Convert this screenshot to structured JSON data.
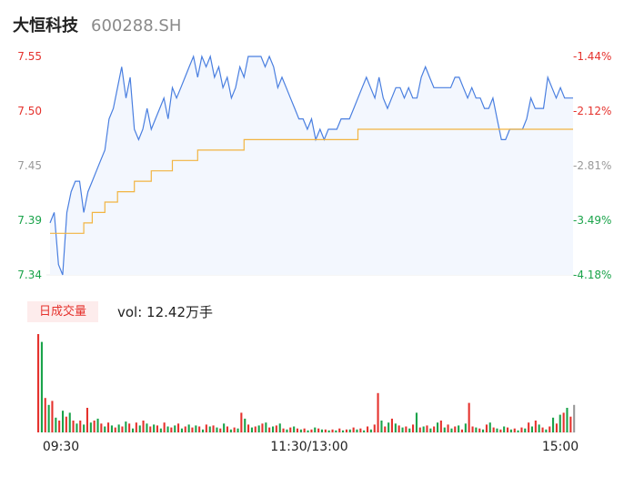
{
  "header": {
    "name": "大恒科技",
    "code": "600288.SH"
  },
  "volume_panel": {
    "tab_label": "日成交量",
    "vol_prefix": "vol: ",
    "vol_value": "12.42万手"
  },
  "colors": {
    "price_line": "#4a7fe0",
    "avg_line": "#f2b441",
    "up": "#e5322d",
    "down": "#1aa34a",
    "neutral": "#999999",
    "area": "#f3f7fe"
  },
  "chart_data": [
    {
      "type": "line",
      "title": "",
      "y_ticks_left": [
        "7.55",
        "7.50",
        "7.45",
        "7.39",
        "7.34"
      ],
      "y_ticks_right": [
        "-1.44%",
        "-2.12%",
        "-2.81%",
        "-3.49%",
        "-4.18%"
      ],
      "tick_colors": [
        "up",
        "up",
        "neutral",
        "down",
        "down"
      ],
      "ylim": [
        7.34,
        7.55
      ],
      "x_ticks": [
        "09:30",
        "11:30/13:00",
        "15:00"
      ],
      "series": [
        {
          "values": [
            7.39,
            7.4,
            7.35,
            7.34,
            7.4,
            7.42,
            7.43,
            7.43,
            7.4,
            7.42,
            7.43,
            7.44,
            7.45,
            7.46,
            7.49,
            7.5,
            7.52,
            7.54,
            7.51,
            7.53,
            7.48,
            7.47,
            7.48,
            7.5,
            7.48,
            7.49,
            7.5,
            7.51,
            7.49,
            7.52,
            7.51,
            7.52,
            7.53,
            7.54,
            7.55,
            7.53,
            7.55,
            7.54,
            7.55,
            7.53,
            7.54,
            7.52,
            7.53,
            7.51,
            7.52,
            7.54,
            7.53,
            7.55,
            7.55,
            7.55,
            7.55,
            7.54,
            7.55,
            7.54,
            7.52,
            7.53,
            7.52,
            7.51,
            7.5,
            7.49,
            7.49,
            7.48,
            7.49,
            7.47,
            7.48,
            7.47,
            7.48,
            7.48,
            7.48,
            7.49,
            7.49,
            7.49,
            7.5,
            7.51,
            7.52,
            7.53,
            7.52,
            7.51,
            7.53,
            7.51,
            7.5,
            7.51,
            7.52,
            7.52,
            7.51,
            7.52,
            7.51,
            7.51,
            7.53,
            7.54,
            7.53,
            7.52,
            7.52,
            7.52,
            7.52,
            7.52,
            7.53,
            7.53,
            7.52,
            7.51,
            7.52,
            7.51,
            7.51,
            7.5,
            7.5,
            7.51,
            7.49,
            7.47,
            7.47,
            7.48,
            7.48,
            7.48,
            7.48,
            7.49,
            7.51,
            7.5,
            7.5,
            7.5,
            7.53,
            7.52,
            7.51,
            7.52,
            7.51,
            7.51,
            7.51
          ],
          "label_values": [
            "7.55",
            "7.50",
            "7.45",
            "7.39",
            "7.34"
          ]
        },
        {
          "values": [
            7.38,
            7.38,
            7.38,
            7.38,
            7.38,
            7.38,
            7.38,
            7.38,
            7.39,
            7.39,
            7.4,
            7.4,
            7.4,
            7.41,
            7.41,
            7.41,
            7.42,
            7.42,
            7.42,
            7.42,
            7.43,
            7.43,
            7.43,
            7.43,
            7.44,
            7.44,
            7.44,
            7.44,
            7.44,
            7.45,
            7.45,
            7.45,
            7.45,
            7.45,
            7.45,
            7.46,
            7.46,
            7.46,
            7.46,
            7.46,
            7.46,
            7.46,
            7.46,
            7.46,
            7.46,
            7.46,
            7.47,
            7.47,
            7.47,
            7.47,
            7.47,
            7.47,
            7.47,
            7.47,
            7.47,
            7.47,
            7.47,
            7.47,
            7.47,
            7.47,
            7.47,
            7.47,
            7.47,
            7.47,
            7.47,
            7.47,
            7.47,
            7.47,
            7.47,
            7.47,
            7.47,
            7.47,
            7.47,
            7.48,
            7.48,
            7.48,
            7.48,
            7.48,
            7.48,
            7.48,
            7.48,
            7.48,
            7.48,
            7.48,
            7.48,
            7.48,
            7.48,
            7.48,
            7.48,
            7.48,
            7.48,
            7.48,
            7.48,
            7.48,
            7.48,
            7.48,
            7.48,
            7.48,
            7.48,
            7.48,
            7.48,
            7.48,
            7.48,
            7.48,
            7.48,
            7.48,
            7.48,
            7.48,
            7.48,
            7.48,
            7.48,
            7.48,
            7.48,
            7.48,
            7.48,
            7.48,
            7.48,
            7.48,
            7.48,
            7.48,
            7.48,
            7.48,
            7.48,
            7.48,
            7.48
          ]
        }
      ]
    },
    {
      "type": "bar",
      "title": "",
      "values": [
        100,
        92,
        35,
        28,
        32,
        15,
        12,
        22,
        16,
        20,
        12,
        9,
        12,
        8,
        25,
        10,
        12,
        14,
        9,
        6,
        10,
        7,
        5,
        8,
        6,
        11,
        9,
        4,
        10,
        7,
        12,
        9,
        6,
        8,
        7,
        4,
        10,
        6,
        5,
        7,
        9,
        4,
        6,
        8,
        5,
        7,
        6,
        3,
        8,
        6,
        7,
        5,
        4,
        9,
        6,
        3,
        5,
        4,
        20,
        14,
        8,
        5,
        6,
        7,
        9,
        10,
        5,
        6,
        7,
        9,
        4,
        3,
        5,
        6,
        4,
        3,
        4,
        2,
        3,
        5,
        4,
        3,
        3,
        2,
        3,
        2,
        4,
        2,
        3,
        3,
        5,
        3,
        4,
        2,
        6,
        3,
        8,
        40,
        12,
        6,
        10,
        14,
        9,
        7,
        5,
        6,
        4,
        8,
        20,
        5,
        6,
        7,
        4,
        6,
        10,
        12,
        5,
        8,
        4,
        6,
        7,
        3,
        9,
        30,
        6,
        5,
        4,
        3,
        8,
        10,
        5,
        4,
        3,
        6,
        5,
        3,
        4,
        2,
        5,
        4,
        10,
        6,
        12,
        8,
        5,
        3,
        6,
        15,
        9,
        18,
        20,
        25,
        16,
        28
      ],
      "colors": [
        "up",
        "down",
        "up",
        "down",
        "up",
        "down",
        "up",
        "down",
        "up",
        "down",
        "up",
        "down",
        "up",
        "down",
        "up",
        "down",
        "up",
        "down",
        "up",
        "down",
        "up",
        "down",
        "up",
        "down",
        "up",
        "down",
        "up",
        "down",
        "up",
        "down",
        "up",
        "down",
        "up",
        "down",
        "up",
        "down",
        "up",
        "down",
        "up",
        "down",
        "up",
        "down",
        "up",
        "down",
        "up",
        "down",
        "up",
        "down",
        "up",
        "down",
        "up",
        "down",
        "up",
        "down",
        "up",
        "down",
        "up",
        "down",
        "up",
        "down",
        "up",
        "down",
        "up",
        "down",
        "up",
        "down",
        "up",
        "down",
        "up",
        "down",
        "up",
        "down",
        "up",
        "down",
        "up",
        "down",
        "up",
        "down",
        "up",
        "down",
        "up",
        "down",
        "up",
        "down",
        "up",
        "down",
        "up",
        "down",
        "up",
        "down",
        "up",
        "down",
        "up",
        "down",
        "up",
        "down",
        "up",
        "up",
        "down",
        "up",
        "down",
        "up",
        "down",
        "up",
        "down",
        "up",
        "down",
        "up",
        "down",
        "up",
        "down",
        "up",
        "down",
        "up",
        "down",
        "up",
        "down",
        "up",
        "down",
        "up",
        "down",
        "up",
        "down",
        "up",
        "up",
        "down",
        "up",
        "down",
        "up",
        "down",
        "up",
        "down",
        "up",
        "down",
        "up",
        "down",
        "up",
        "down",
        "up",
        "down",
        "up",
        "down",
        "up",
        "down",
        "up",
        "down",
        "up",
        "down",
        "up",
        "down",
        "up",
        "down",
        "up",
        "neutral"
      ]
    }
  ]
}
